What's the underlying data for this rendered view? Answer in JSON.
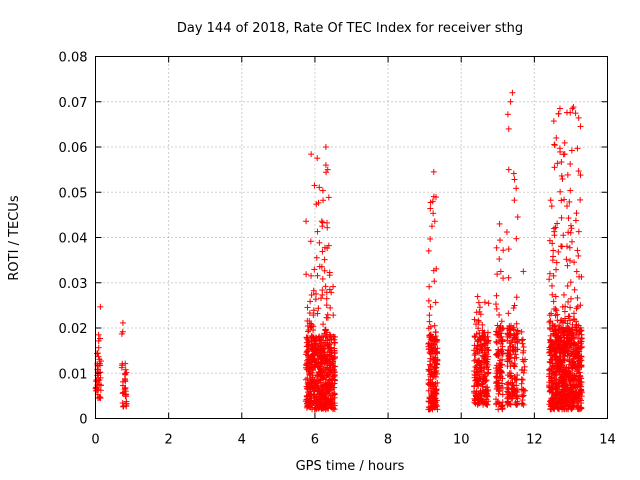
{
  "chart_data": {
    "type": "scatter",
    "title": "Day 144 of 2018, Rate Of TEC Index for receiver sthg",
    "xlabel": "GPS time / hours",
    "ylabel": "ROTI / TECUs",
    "xlim": [
      0,
      14
    ],
    "ylim": [
      0,
      0.08
    ],
    "xticks": [
      0,
      2,
      4,
      6,
      8,
      10,
      12,
      14
    ],
    "xtick_labels": [
      "0",
      "2",
      "4",
      "6",
      "8",
      "10",
      "12",
      "14"
    ],
    "yticks": [
      0,
      0.01,
      0.02,
      0.03,
      0.04,
      0.05,
      0.06,
      0.07,
      0.08
    ],
    "ytick_labels": [
      "0",
      "0.01",
      "0.02",
      "0.03",
      "0.04",
      "0.05",
      "0.06",
      "0.07",
      "0.08"
    ],
    "grid": true,
    "marker": "+",
    "color": "#ff0000",
    "clusters": [
      {
        "x_range": [
          0.0,
          0.15
        ],
        "count": 45,
        "y_base": [
          0.004,
          0.013
        ],
        "tail_max": 0.025
      },
      {
        "x_range": [
          0.72,
          0.85
        ],
        "count": 35,
        "y_base": [
          0.002,
          0.012
        ],
        "tail_max": 0.024
      },
      {
        "x_range": [
          5.75,
          6.55
        ],
        "count": 650,
        "y_base": [
          0.002,
          0.018
        ],
        "tail_max": 0.06
      },
      {
        "x_range": [
          9.1,
          9.35
        ],
        "count": 200,
        "y_base": [
          0.002,
          0.018
        ],
        "tail_max": 0.055
      },
      {
        "x_range": [
          10.35,
          10.75
        ],
        "count": 220,
        "y_base": [
          0.003,
          0.018
        ],
        "tail_max": 0.03
      },
      {
        "x_range": [
          10.95,
          11.15
        ],
        "count": 120,
        "y_base": [
          0.002,
          0.02
        ],
        "tail_max": 0.043
      },
      {
        "x_range": [
          11.25,
          11.55
        ],
        "count": 160,
        "y_base": [
          0.003,
          0.02
        ],
        "tail_max": 0.072
      },
      {
        "x_range": [
          11.65,
          11.75
        ],
        "count": 30,
        "y_base": [
          0.003,
          0.015
        ],
        "tail_max": 0.0325
      },
      {
        "x_range": [
          12.4,
          13.3
        ],
        "count": 850,
        "y_base": [
          0.002,
          0.02
        ],
        "tail_max": 0.069
      }
    ],
    "notable_points": [
      {
        "x": 6.3,
        "y": 0.06
      },
      {
        "x": 6.3,
        "y": 0.056
      },
      {
        "x": 6.35,
        "y": 0.055
      },
      {
        "x": 6.2,
        "y": 0.0425
      },
      {
        "x": 9.25,
        "y": 0.0545
      },
      {
        "x": 9.2,
        "y": 0.0425
      },
      {
        "x": 11.4,
        "y": 0.072
      },
      {
        "x": 11.35,
        "y": 0.07
      },
      {
        "x": 11.3,
        "y": 0.064
      },
      {
        "x": 11.3,
        "y": 0.055
      },
      {
        "x": 11.05,
        "y": 0.043
      },
      {
        "x": 12.7,
        "y": 0.0685
      },
      {
        "x": 12.6,
        "y": 0.062
      },
      {
        "x": 12.55,
        "y": 0.0555
      },
      {
        "x": 12.55,
        "y": 0.0405
      },
      {
        "x": 11.7,
        "y": 0.0325
      }
    ]
  }
}
